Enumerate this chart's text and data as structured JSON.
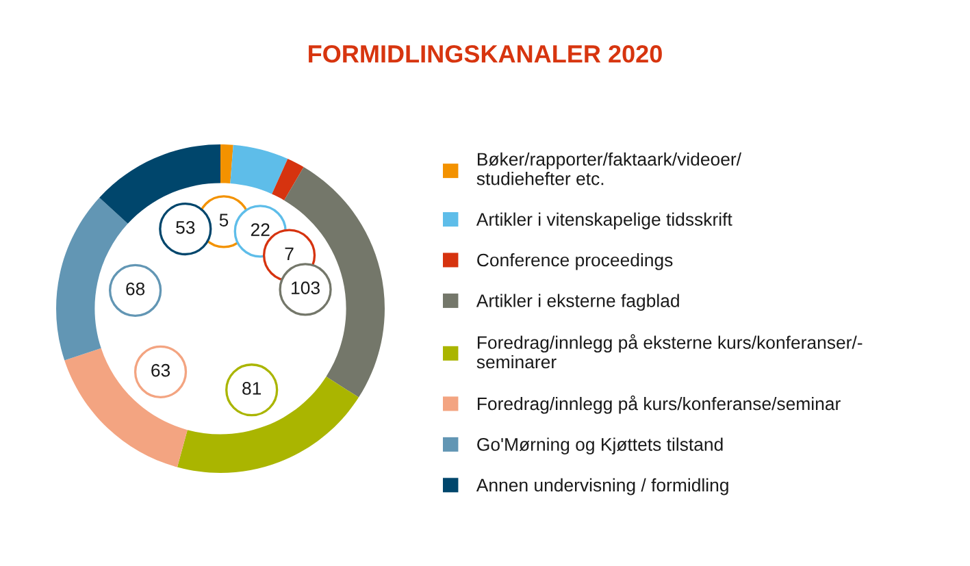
{
  "chart_data": {
    "type": "donut",
    "title": "FORMIDLINGSKANALER 2020",
    "categories": [
      "Bøker/rapporter/faktaark/videoer/\nstudiehefter etc.",
      "Artikler i vitenskapelige tidsskrift",
      "Conference proceedings",
      "Artikler i eksterne fagblad",
      "Foredrag/innlegg på eksterne kurs/konferanser/-\nseminarer",
      "Foredrag/innlegg på kurs/konferanse/seminar",
      "Go'Mørning og Kjøttets tilstand",
      "Annen undervisning / formidling"
    ],
    "values": [
      5,
      22,
      7,
      103,
      81,
      63,
      68,
      53
    ],
    "colors": [
      "#f39200",
      "#5ebde9",
      "#d6330f",
      "#74776a",
      "#aab500",
      "#f3a481",
      "#6296b4",
      "#00466c"
    ],
    "data_labels": true,
    "legend": "right"
  }
}
